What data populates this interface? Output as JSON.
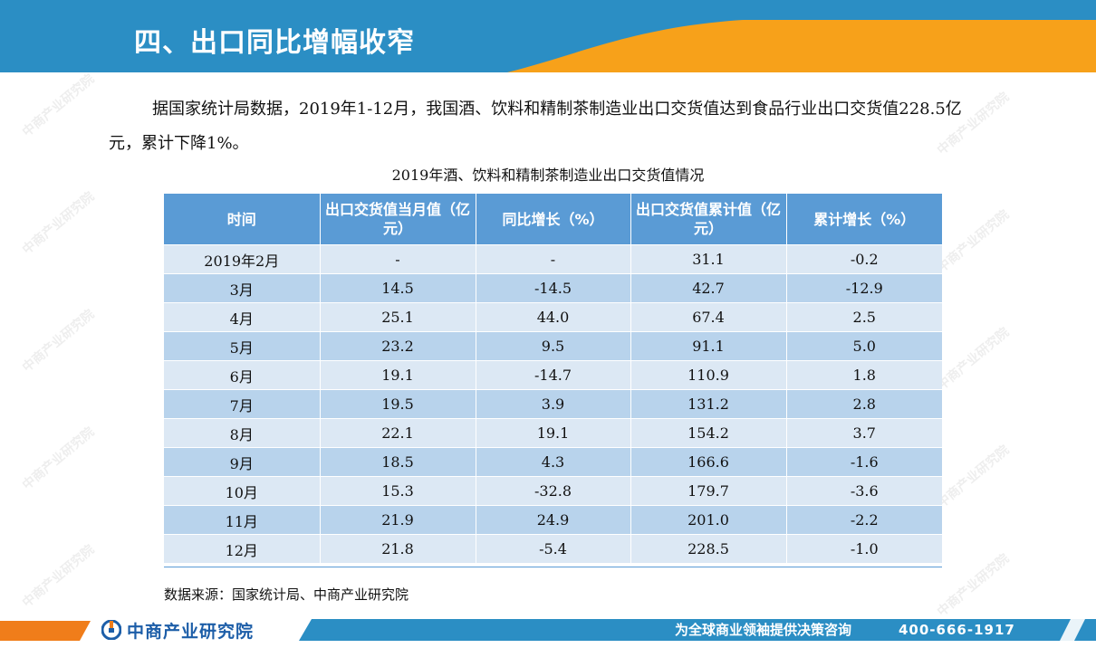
{
  "header": {
    "title": "四、出口同比增幅收窄",
    "colors": {
      "banner": "#2b8ec4",
      "accent": "#f7a11a"
    }
  },
  "paragraph": {
    "text": "据国家统计局数据，2019年1-12月，我国酒、饮料和精制茶制造业出口交货值达到食品行业出口交货值228.5亿元，累计下降1%。"
  },
  "table": {
    "title": "2019年酒、饮料和精制茶制造业出口交货值情况",
    "columns": [
      "时间",
      "出口交货值当月值（亿元）",
      "同比增长（%）",
      "出口交货值累计值（亿元）",
      "累计增长（%）"
    ],
    "rows": [
      [
        "2019年2月",
        "-",
        "-",
        "31.1",
        "-0.2"
      ],
      [
        "3月",
        "14.5",
        "-14.5",
        "42.7",
        "-12.9"
      ],
      [
        "4月",
        "25.1",
        "44.0",
        "67.4",
        "2.5"
      ],
      [
        "5月",
        "23.2",
        "9.5",
        "91.1",
        "5.0"
      ],
      [
        "6月",
        "19.1",
        "-14.7",
        "110.9",
        "1.8"
      ],
      [
        "7月",
        "19.5",
        "3.9",
        "131.2",
        "2.8"
      ],
      [
        "8月",
        "22.1",
        "19.1",
        "154.2",
        "3.7"
      ],
      [
        "9月",
        "18.5",
        "4.3",
        "166.6",
        "-1.6"
      ],
      [
        "10月",
        "15.3",
        "-32.8",
        "179.7",
        "-3.6"
      ],
      [
        "11月",
        "21.9",
        "24.9",
        "201.0",
        "-2.2"
      ],
      [
        "12月",
        "21.8",
        "-5.4",
        "228.5",
        "-1.0"
      ]
    ],
    "colors": {
      "header": "#5a9bd5",
      "row_light": "#dce8f4",
      "row_dark": "#b8d3ec"
    }
  },
  "source": "数据来源：国家统计局、中商产业研究院",
  "footer": {
    "logo_text": "中商产业研究院",
    "slogan": "为全球商业领袖提供决策咨询",
    "phone": "400-666-1917"
  },
  "watermark": {
    "text": "中商产业研究院",
    "url": "www.askci.com/reports"
  }
}
